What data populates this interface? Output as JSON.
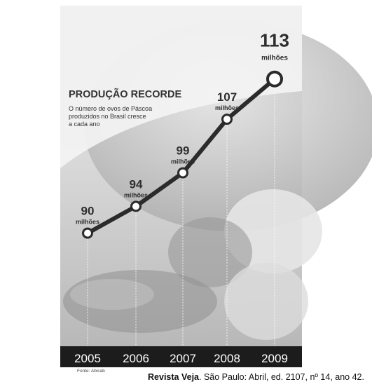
{
  "chart_data": {
    "type": "line",
    "title": "PRODUÇÃO RECORDE",
    "subtitle": "O número de ovos de Páscoa produzidos no Brasil cresce a cada ano",
    "subtitle_lines": [
      "O número de ovos de Páscoa",
      "produzidos no Brasil cresce",
      "a cada ano"
    ],
    "x": [
      "2005",
      "2006",
      "2007",
      "2008",
      "2009"
    ],
    "values": [
      90,
      94,
      99,
      107,
      113
    ],
    "data_labels": [
      "90",
      "94",
      "99",
      "107",
      "113"
    ],
    "unit_label": "milhões",
    "xlabel": "",
    "ylabel": "",
    "ylim": [
      84,
      116
    ],
    "source": "Fonte: Abicab",
    "colors": {
      "line": "#2b2b2b",
      "marker_fill": "#ffffff",
      "axis_band": "#1c1c1c",
      "axis_text": "#ffffff"
    }
  },
  "caption": {
    "bold": "Revista Veja",
    "rest": ". São Paulo: Abril, ed. 2107, nº 14, ano 42."
  }
}
